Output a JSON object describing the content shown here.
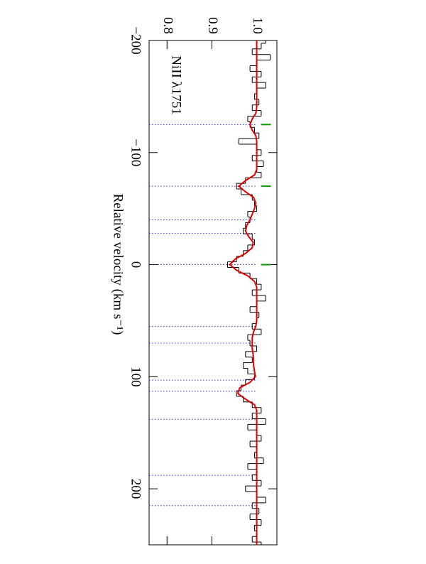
{
  "chart_data": {
    "type": "step",
    "annotation": "NiII λ1751",
    "xlabel": "Relative velocity (km s⁻¹)",
    "xlim": [
      -200,
      250
    ],
    "ylim": [
      0.76,
      1.045
    ],
    "xticks": [
      {
        "value": -200,
        "label": "−200"
      },
      {
        "value": -100,
        "label": "−100"
      },
      0,
      100,
      200
    ],
    "yticks": [
      0.8,
      0.9,
      {
        "value": 1,
        "label": "1.0"
      }
    ],
    "x": [
      -200,
      -195,
      -190,
      -185,
      -180,
      -175,
      -170,
      -165,
      -160,
      -155,
      -150,
      -145,
      -140,
      -135,
      -130,
      -125,
      -120,
      -115,
      -110,
      -105,
      -100,
      -95,
      -90,
      -85,
      -80,
      -75,
      -70,
      -65,
      -60,
      -55,
      -50,
      -45,
      -40,
      -35,
      -30,
      -25,
      -20,
      -15,
      -10,
      -5,
      0,
      5,
      10,
      15,
      20,
      25,
      30,
      35,
      40,
      45,
      50,
      55,
      60,
      65,
      70,
      75,
      80,
      85,
      90,
      95,
      100,
      105,
      110,
      115,
      120,
      125,
      130,
      135,
      140,
      145,
      150,
      155,
      160,
      165,
      170,
      175,
      180,
      185,
      190,
      195,
      200,
      205,
      210,
      215,
      220,
      225,
      230,
      235,
      240,
      245,
      250
    ],
    "series": [
      {
        "color": "#000000",
        "values": [
          1.02,
          1.01,
          0.99,
          1.03,
          1.0,
          0.985,
          1.01,
          0.99,
          1.02,
          1.0,
          0.995,
          1.005,
          0.99,
          1.01,
          0.98,
          0.985,
          0.995,
          1.005,
          0.96,
          1.0,
          1.01,
          0.99,
          1.015,
          1.0,
          1.01,
          0.975,
          0.955,
          0.965,
          0.99,
          0.995,
          1.0,
          0.98,
          0.985,
          0.975,
          0.97,
          0.99,
          0.995,
          0.98,
          0.97,
          0.955,
          0.935,
          0.96,
          0.985,
          1.0,
          1.01,
          0.99,
          1.02,
          1.0,
          0.985,
          1.005,
          1.0,
          0.99,
          1.01,
          0.98,
          0.985,
          1.0,
          0.975,
          0.99,
          0.97,
          0.98,
          0.995,
          0.975,
          0.965,
          0.955,
          0.97,
          0.99,
          1.01,
          0.99,
          1.02,
          0.98,
          1.0,
          1.01,
          0.985,
          1.0,
          0.995,
          1.015,
          0.98,
          1.0,
          0.99,
          1.01,
          0.975,
          1.0,
          1.02,
          0.99,
          1.005,
          0.985,
          1.01,
          0.995,
          1.0,
          0.99,
          1.01
        ]
      },
      {
        "color": "#e00000",
        "values": [
          1.0,
          1.0,
          1.0,
          1.0,
          1.0,
          1.0,
          1.0,
          1.0,
          1.0,
          1.0,
          1.0,
          1.0,
          1.0,
          0.998,
          0.99,
          0.985,
          0.99,
          0.998,
          1.0,
          1.0,
          1.0,
          1.0,
          1.0,
          1.0,
          0.995,
          0.975,
          0.96,
          0.975,
          0.993,
          0.998,
          0.995,
          0.99,
          0.985,
          0.978,
          0.975,
          0.982,
          0.992,
          0.99,
          0.975,
          0.952,
          0.94,
          0.955,
          0.98,
          0.995,
          1.0,
          1.0,
          1.0,
          1.0,
          1.0,
          1.0,
          1.0,
          0.998,
          0.993,
          0.99,
          0.99,
          0.99,
          0.992,
          0.993,
          0.993,
          0.995,
          0.997,
          0.985,
          0.962,
          0.958,
          0.975,
          0.995,
          1.0,
          1.0,
          1.0,
          1.0,
          1.0,
          1.0,
          1.0,
          1.0,
          1.0,
          1.0,
          1.0,
          1.0,
          1.0,
          1.0,
          1.0,
          1.0,
          1.0,
          1.0,
          1.0,
          1.0,
          1.0,
          1.0,
          1.0,
          1.0,
          1.0
        ]
      }
    ],
    "components": [
      -125,
      -70,
      -40,
      -28,
      0,
      55,
      70,
      103,
      113,
      138,
      188,
      215
    ],
    "component_color": "#3333cc",
    "markers": [
      -125,
      -70,
      0
    ],
    "marker_color": "#119911"
  }
}
